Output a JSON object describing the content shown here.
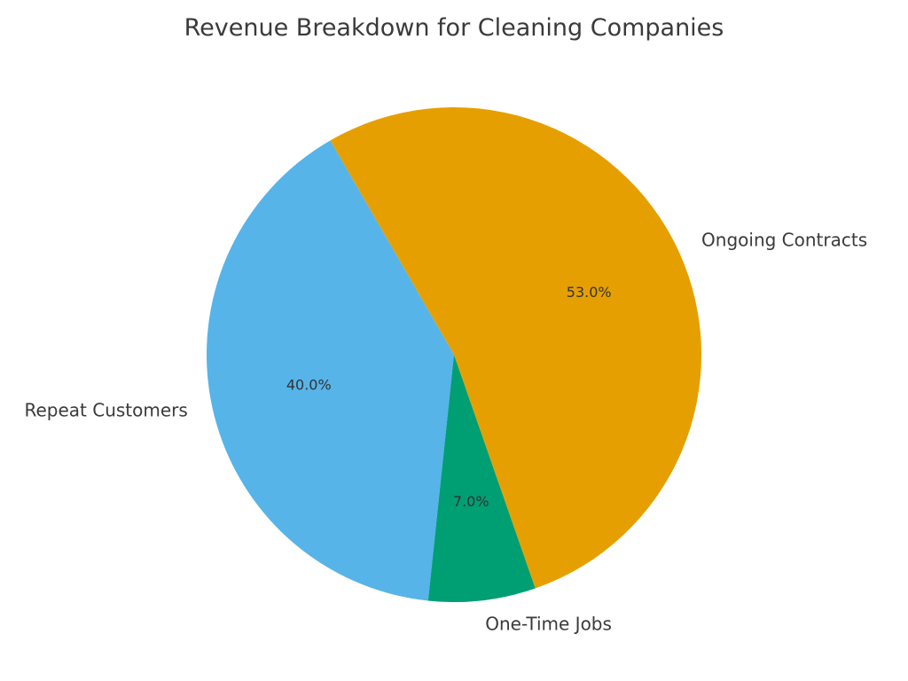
{
  "chart_data": {
    "type": "pie",
    "title": "Revenue Breakdown for Cleaning Companies",
    "start_angle_deg": 120,
    "direction": "counterclockwise",
    "slices": [
      {
        "label": "Repeat Customers",
        "value": 40.0,
        "pct_text": "40.0%",
        "color": "#56B4E9"
      },
      {
        "label": "One-Time Jobs",
        "value": 7.0,
        "pct_text": "7.0%",
        "color": "#009E73"
      },
      {
        "label": "Ongoing Contracts",
        "value": 53.0,
        "pct_text": "53.0%",
        "color": "#E69F00"
      }
    ]
  }
}
